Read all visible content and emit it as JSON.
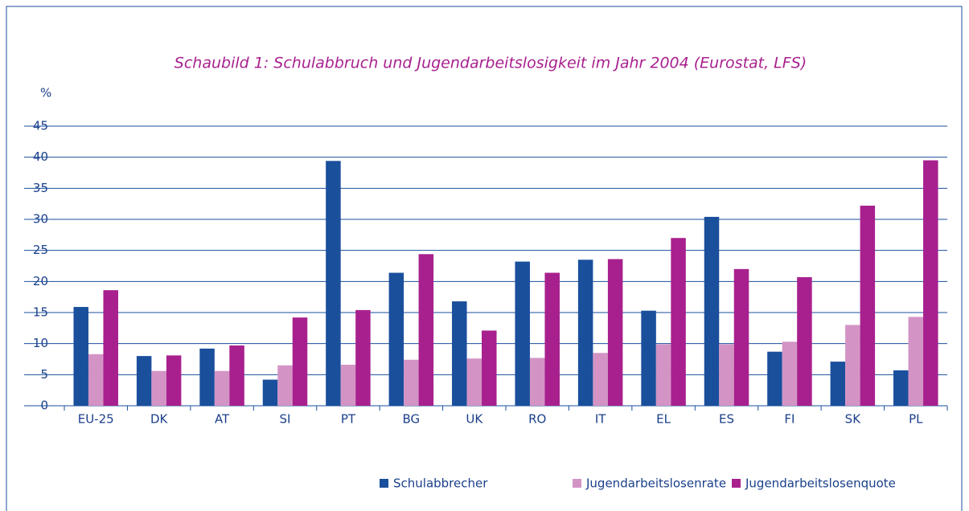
{
  "chart_data": {
    "type": "bar",
    "title": "Schaubild 1: Schulabbruch und Jugendarbeitslosigkeit im Jahr 2004 (Eurostat, LFS)",
    "y_label": "%",
    "categories": [
      "EU-25",
      "DK",
      "AT",
      "SI",
      "PT",
      "BG",
      "UK",
      "RO",
      "IT",
      "EL",
      "ES",
      "FI",
      "SK",
      "PL"
    ],
    "series": [
      {
        "name": "Schulabbrecher",
        "color": "#1a4f9c",
        "values": [
          15.9,
          8.0,
          9.2,
          4.2,
          39.4,
          21.4,
          16.8,
          23.2,
          23.5,
          15.3,
          30.4,
          8.7,
          7.1,
          5.7
        ]
      },
      {
        "name": "Jugendarbeitslosenrate",
        "color": "#d394c5",
        "values": [
          8.3,
          5.6,
          5.6,
          6.5,
          6.6,
          7.4,
          7.6,
          7.7,
          8.5,
          9.9,
          9.9,
          10.3,
          13.0,
          14.3
        ]
      },
      {
        "name": "Jugendarbeitslosenquote",
        "color": "#a8208e",
        "values": [
          18.6,
          8.1,
          9.7,
          14.2,
          15.4,
          24.4,
          12.1,
          21.4,
          23.6,
          27.0,
          22.0,
          20.7,
          32.2,
          39.5
        ]
      }
    ],
    "ylim": [
      0,
      45
    ],
    "yticks": [
      0,
      5,
      10,
      15,
      20,
      25,
      30,
      35,
      40,
      45
    ],
    "grid": true
  }
}
